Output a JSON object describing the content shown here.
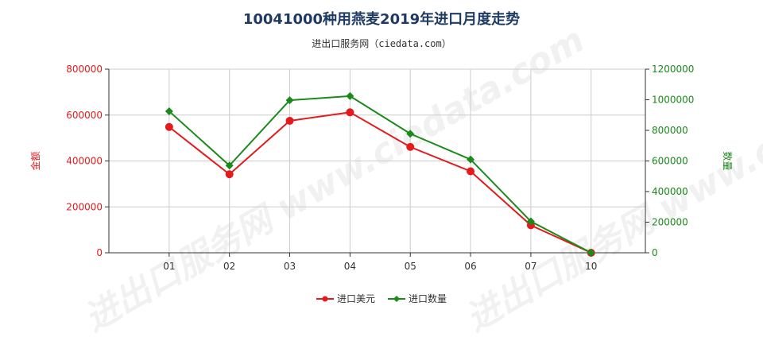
{
  "title": "10041000种用燕麦2019年进口月度走势",
  "subtitle": "进出口服务网（ciedata.com）",
  "watermark": "进出口服务网 www.ciedata.com",
  "colors": {
    "left_axis": "#e41a1c",
    "right_axis": "#1a8a1a",
    "grid": "#cccccc",
    "axis": "#333333"
  },
  "chart_data": {
    "type": "line",
    "categories": [
      "01",
      "02",
      "03",
      "04",
      "05",
      "06",
      "07",
      "10"
    ],
    "ylabel_left": "金额",
    "ylabel_right": "数量",
    "ylim_left": [
      0,
      800000
    ],
    "ylim_right": [
      0,
      1200000
    ],
    "yticks_left": [
      "0",
      "200000",
      "400000",
      "600000",
      "800000"
    ],
    "yticks_right": [
      "0",
      "200000",
      "400000",
      "600000",
      "800000",
      "1000000",
      "1200000"
    ],
    "grid": true,
    "legend_position": "bottom-center",
    "series": [
      {
        "name": "进口美元",
        "axis": "left",
        "color": "#e41a1c",
        "marker": "circle",
        "values": [
          548000,
          342000,
          575000,
          612000,
          461000,
          355000,
          120000,
          0
        ]
      },
      {
        "name": "进口数量",
        "axis": "right",
        "color": "#1a8a1a",
        "marker": "diamond",
        "values": [
          925000,
          570000,
          997000,
          1024000,
          778000,
          610000,
          205000,
          0
        ]
      }
    ]
  }
}
